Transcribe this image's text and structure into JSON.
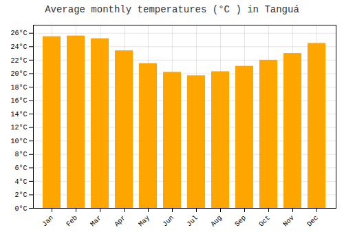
{
  "chart_data": {
    "type": "bar",
    "title": "Average monthly temperatures (°C ) in Tanguá",
    "categories": [
      "Jan",
      "Feb",
      "Mar",
      "Apr",
      "May",
      "Jun",
      "Jul",
      "Aug",
      "Sep",
      "Oct",
      "Nov",
      "Dec"
    ],
    "values": [
      25.5,
      25.6,
      25.2,
      23.4,
      21.5,
      20.2,
      19.7,
      20.3,
      21.1,
      22.0,
      23.0,
      24.5
    ],
    "color": "#FFA500",
    "ylim": [
      0,
      27.2
    ],
    "yticks": [
      {
        "value": 0,
        "label": "0°C"
      },
      {
        "value": 2,
        "label": "2°C"
      },
      {
        "value": 4,
        "label": "4°C"
      },
      {
        "value": 6,
        "label": "6°C"
      },
      {
        "value": 8,
        "label": "8°C"
      },
      {
        "value": 10,
        "label": "10°C"
      },
      {
        "value": 12,
        "label": "12°C"
      },
      {
        "value": 14,
        "label": "14°C"
      },
      {
        "value": 16,
        "label": "16°C"
      },
      {
        "value": 18,
        "label": "18°C"
      },
      {
        "value": 20,
        "label": "20°C"
      },
      {
        "value": 22,
        "label": "22°C"
      },
      {
        "value": 24,
        "label": "24°C"
      },
      {
        "value": 26,
        "label": "26°C"
      }
    ],
    "grid": true
  }
}
